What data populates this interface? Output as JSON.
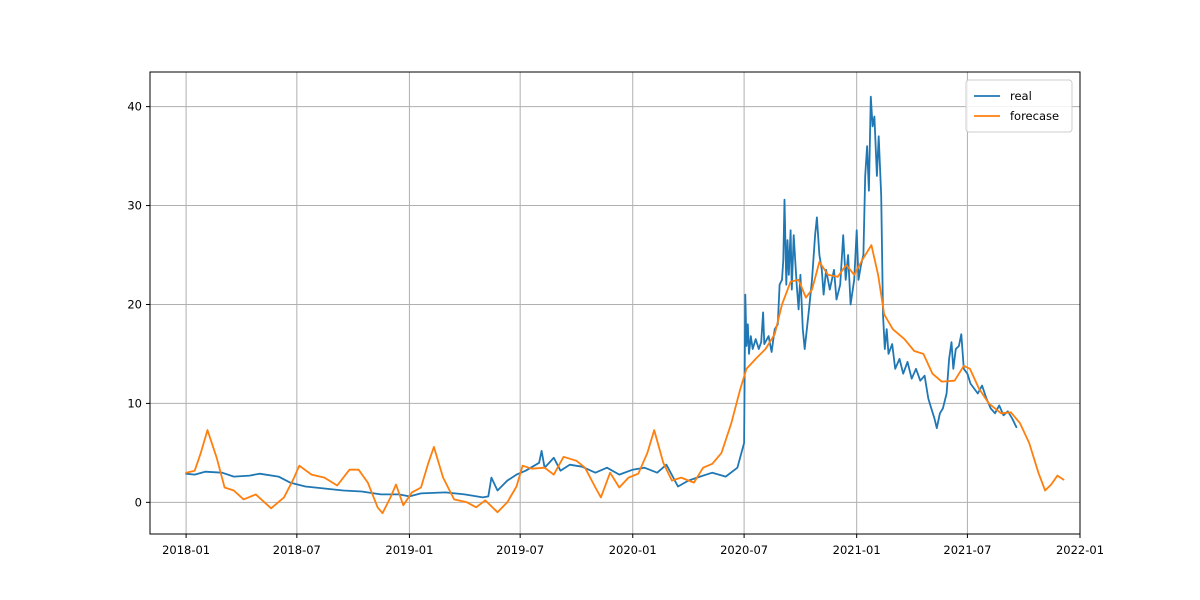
{
  "chart_data": {
    "type": "line",
    "title": "",
    "xlabel": "",
    "ylabel": "",
    "x_range": [
      "2017-11-03",
      "2022-01-01"
    ],
    "ylim": [
      -3.2,
      43.5
    ],
    "grid": true,
    "legend_position": "top-right",
    "x_ticks": [
      {
        "date": "2018-01-01",
        "label": "2018-01"
      },
      {
        "date": "2018-07-01",
        "label": "2018-07"
      },
      {
        "date": "2019-01-01",
        "label": "2019-01"
      },
      {
        "date": "2019-07-01",
        "label": "2019-07"
      },
      {
        "date": "2020-01-01",
        "label": "2020-01"
      },
      {
        "date": "2020-07-01",
        "label": "2020-07"
      },
      {
        "date": "2021-01-01",
        "label": "2021-01"
      },
      {
        "date": "2021-07-01",
        "label": "2021-07"
      },
      {
        "date": "2022-01-01",
        "label": "2022-01"
      }
    ],
    "y_ticks": [
      {
        "value": 0,
        "label": "0"
      },
      {
        "value": 10,
        "label": "10"
      },
      {
        "value": 20,
        "label": "20"
      },
      {
        "value": 30,
        "label": "30"
      },
      {
        "value": 40,
        "label": "40"
      }
    ],
    "series": [
      {
        "name": "real",
        "color": "#1f77b4",
        "points": [
          [
            "2018-01-01",
            2.9
          ],
          [
            "2018-01-15",
            2.8
          ],
          [
            "2018-02-01",
            3.1
          ],
          [
            "2018-03-01",
            3.0
          ],
          [
            "2018-03-20",
            2.6
          ],
          [
            "2018-04-15",
            2.7
          ],
          [
            "2018-05-01",
            2.9
          ],
          [
            "2018-06-01",
            2.6
          ],
          [
            "2018-06-20",
            2.0
          ],
          [
            "2018-07-15",
            1.6
          ],
          [
            "2018-08-15",
            1.4
          ],
          [
            "2018-09-15",
            1.2
          ],
          [
            "2018-10-15",
            1.1
          ],
          [
            "2018-11-15",
            0.8
          ],
          [
            "2018-12-15",
            0.8
          ],
          [
            "2019-01-01",
            0.6
          ],
          [
            "2019-01-20",
            0.9
          ],
          [
            "2019-03-01",
            1.0
          ],
          [
            "2019-04-01",
            0.8
          ],
          [
            "2019-05-01",
            0.5
          ],
          [
            "2019-05-10",
            0.6
          ],
          [
            "2019-05-15",
            2.5
          ],
          [
            "2019-05-25",
            1.2
          ],
          [
            "2019-06-10",
            2.2
          ],
          [
            "2019-06-25",
            2.8
          ],
          [
            "2019-07-10",
            3.2
          ],
          [
            "2019-08-01",
            4.0
          ],
          [
            "2019-08-05",
            5.2
          ],
          [
            "2019-08-10",
            3.5
          ],
          [
            "2019-08-25",
            4.5
          ],
          [
            "2019-09-05",
            3.2
          ],
          [
            "2019-09-20",
            3.8
          ],
          [
            "2019-10-10",
            3.6
          ],
          [
            "2019-11-01",
            3.0
          ],
          [
            "2019-11-20",
            3.5
          ],
          [
            "2019-12-10",
            2.8
          ],
          [
            "2020-01-01",
            3.3
          ],
          [
            "2020-01-20",
            3.5
          ],
          [
            "2020-02-10",
            3.0
          ],
          [
            "2020-02-25",
            3.8
          ],
          [
            "2020-03-15",
            1.6
          ],
          [
            "2020-04-01",
            2.2
          ],
          [
            "2020-04-20",
            2.6
          ],
          [
            "2020-05-10",
            3.0
          ],
          [
            "2020-06-01",
            2.6
          ],
          [
            "2020-06-20",
            3.5
          ],
          [
            "2020-07-01",
            6.0
          ],
          [
            "2020-07-03",
            21.0
          ],
          [
            "2020-07-05",
            15.8
          ],
          [
            "2020-07-07",
            18.0
          ],
          [
            "2020-07-09",
            15.0
          ],
          [
            "2020-07-12",
            16.8
          ],
          [
            "2020-07-15",
            15.5
          ],
          [
            "2020-07-20",
            16.5
          ],
          [
            "2020-07-25",
            15.5
          ],
          [
            "2020-07-29",
            16.2
          ],
          [
            "2020-08-01",
            19.2
          ],
          [
            "2020-08-03",
            16.0
          ],
          [
            "2020-08-10",
            16.8
          ],
          [
            "2020-08-15",
            15.2
          ],
          [
            "2020-08-20",
            17.5
          ],
          [
            "2020-08-25",
            18.0
          ],
          [
            "2020-08-28",
            22.0
          ],
          [
            "2020-09-01",
            22.5
          ],
          [
            "2020-09-03",
            24.5
          ],
          [
            "2020-09-05",
            30.6
          ],
          [
            "2020-09-08",
            22.0
          ],
          [
            "2020-09-10",
            26.5
          ],
          [
            "2020-09-12",
            23.0
          ],
          [
            "2020-09-15",
            27.5
          ],
          [
            "2020-09-17",
            21.5
          ],
          [
            "2020-09-20",
            27.0
          ],
          [
            "2020-09-25",
            22.0
          ],
          [
            "2020-09-28",
            19.5
          ],
          [
            "2020-10-01",
            23.0
          ],
          [
            "2020-10-05",
            17.5
          ],
          [
            "2020-10-08",
            15.5
          ],
          [
            "2020-10-15",
            19.5
          ],
          [
            "2020-10-20",
            22.5
          ],
          [
            "2020-10-25",
            27.0
          ],
          [
            "2020-10-28",
            28.8
          ],
          [
            "2020-11-01",
            25.0
          ],
          [
            "2020-11-05",
            23.5
          ],
          [
            "2020-11-08",
            21.0
          ],
          [
            "2020-11-12",
            23.5
          ],
          [
            "2020-11-18",
            21.5
          ],
          [
            "2020-11-25",
            23.5
          ],
          [
            "2020-11-29",
            20.5
          ],
          [
            "2020-12-05",
            22.0
          ],
          [
            "2020-12-10",
            27.0
          ],
          [
            "2020-12-14",
            22.5
          ],
          [
            "2020-12-18",
            25.0
          ],
          [
            "2020-12-22",
            20.0
          ],
          [
            "2020-12-28",
            22.5
          ],
          [
            "2021-01-01",
            27.5
          ],
          [
            "2021-01-04",
            22.5
          ],
          [
            "2021-01-08",
            24.0
          ],
          [
            "2021-01-12",
            25.0
          ],
          [
            "2021-01-15",
            33.0
          ],
          [
            "2021-01-18",
            36.0
          ],
          [
            "2021-01-21",
            31.5
          ],
          [
            "2021-01-24",
            41.0
          ],
          [
            "2021-01-27",
            38.0
          ],
          [
            "2021-01-30",
            39.0
          ],
          [
            "2021-02-03",
            33.0
          ],
          [
            "2021-02-06",
            37.0
          ],
          [
            "2021-02-10",
            31.0
          ],
          [
            "2021-02-13",
            19.0
          ],
          [
            "2021-02-16",
            15.5
          ],
          [
            "2021-02-19",
            17.5
          ],
          [
            "2021-02-22",
            15.0
          ],
          [
            "2021-02-28",
            16.0
          ],
          [
            "2021-03-05",
            13.5
          ],
          [
            "2021-03-12",
            14.5
          ],
          [
            "2021-03-18",
            13.0
          ],
          [
            "2021-03-25",
            14.2
          ],
          [
            "2021-04-01",
            12.5
          ],
          [
            "2021-04-08",
            13.5
          ],
          [
            "2021-04-15",
            12.3
          ],
          [
            "2021-04-22",
            12.8
          ],
          [
            "2021-04-28",
            10.5
          ],
          [
            "2021-05-03",
            9.5
          ],
          [
            "2021-05-08",
            8.5
          ],
          [
            "2021-05-12",
            7.5
          ],
          [
            "2021-05-17",
            9.0
          ],
          [
            "2021-05-22",
            9.5
          ],
          [
            "2021-05-28",
            11.0
          ],
          [
            "2021-06-01",
            14.5
          ],
          [
            "2021-06-05",
            16.2
          ],
          [
            "2021-06-08",
            13.5
          ],
          [
            "2021-06-12",
            15.5
          ],
          [
            "2021-06-17",
            15.8
          ],
          [
            "2021-06-21",
            17.0
          ],
          [
            "2021-06-25",
            13.5
          ],
          [
            "2021-07-01",
            13.0
          ],
          [
            "2021-07-06",
            12.0
          ],
          [
            "2021-07-12",
            11.5
          ],
          [
            "2021-07-18",
            11.0
          ],
          [
            "2021-07-25",
            11.8
          ],
          [
            "2021-08-01",
            10.5
          ],
          [
            "2021-08-08",
            9.5
          ],
          [
            "2021-08-15",
            9.0
          ],
          [
            "2021-08-22",
            9.8
          ],
          [
            "2021-08-29",
            8.8
          ],
          [
            "2021-09-05",
            9.2
          ],
          [
            "2021-09-12",
            8.5
          ],
          [
            "2021-09-19",
            7.6
          ]
        ]
      },
      {
        "name": "forecase",
        "color": "#ff7f0e",
        "points": [
          [
            "2018-01-01",
            3.0
          ],
          [
            "2018-01-15",
            3.2
          ],
          [
            "2018-01-25",
            5.0
          ],
          [
            "2018-02-05",
            7.3
          ],
          [
            "2018-02-20",
            4.5
          ],
          [
            "2018-03-05",
            1.5
          ],
          [
            "2018-03-20",
            1.2
          ],
          [
            "2018-04-05",
            0.3
          ],
          [
            "2018-04-25",
            0.8
          ],
          [
            "2018-05-20",
            -0.6
          ],
          [
            "2018-06-10",
            0.5
          ],
          [
            "2018-06-25",
            2.3
          ],
          [
            "2018-07-05",
            3.7
          ],
          [
            "2018-07-25",
            2.8
          ],
          [
            "2018-08-15",
            2.5
          ],
          [
            "2018-09-05",
            1.7
          ],
          [
            "2018-09-25",
            3.3
          ],
          [
            "2018-10-10",
            3.3
          ],
          [
            "2018-10-25",
            2.0
          ],
          [
            "2018-11-10",
            -0.5
          ],
          [
            "2018-11-18",
            -1.1
          ],
          [
            "2018-12-01",
            0.5
          ],
          [
            "2018-12-10",
            1.8
          ],
          [
            "2018-12-22",
            -0.3
          ],
          [
            "2019-01-05",
            1.0
          ],
          [
            "2019-01-20",
            1.5
          ],
          [
            "2019-02-01",
            4.0
          ],
          [
            "2019-02-10",
            5.6
          ],
          [
            "2019-02-25",
            2.5
          ],
          [
            "2019-03-15",
            0.3
          ],
          [
            "2019-04-05",
            0.0
          ],
          [
            "2019-04-20",
            -0.5
          ],
          [
            "2019-05-05",
            0.2
          ],
          [
            "2019-05-25",
            -1.0
          ],
          [
            "2019-06-10",
            0.0
          ],
          [
            "2019-06-25",
            1.6
          ],
          [
            "2019-07-05",
            3.7
          ],
          [
            "2019-07-20",
            3.4
          ],
          [
            "2019-08-10",
            3.5
          ],
          [
            "2019-08-25",
            2.8
          ],
          [
            "2019-09-10",
            4.6
          ],
          [
            "2019-10-01",
            4.2
          ],
          [
            "2019-10-15",
            3.5
          ],
          [
            "2019-11-01",
            1.5
          ],
          [
            "2019-11-10",
            0.5
          ],
          [
            "2019-11-25",
            3.0
          ],
          [
            "2019-12-10",
            1.5
          ],
          [
            "2019-12-25",
            2.5
          ],
          [
            "2020-01-10",
            2.9
          ],
          [
            "2020-01-25",
            5.0
          ],
          [
            "2020-02-05",
            7.3
          ],
          [
            "2020-02-20",
            4.0
          ],
          [
            "2020-03-05",
            2.2
          ],
          [
            "2020-03-20",
            2.5
          ],
          [
            "2020-04-10",
            2.0
          ],
          [
            "2020-04-25",
            3.5
          ],
          [
            "2020-05-10",
            3.9
          ],
          [
            "2020-05-25",
            5.0
          ],
          [
            "2020-06-10",
            8.0
          ],
          [
            "2020-06-25",
            11.5
          ],
          [
            "2020-07-05",
            13.5
          ],
          [
            "2020-07-20",
            14.5
          ],
          [
            "2020-08-05",
            15.5
          ],
          [
            "2020-08-20",
            17.0
          ],
          [
            "2020-09-01",
            20.0
          ],
          [
            "2020-09-15",
            22.3
          ],
          [
            "2020-09-28",
            22.5
          ],
          [
            "2020-10-10",
            20.7
          ],
          [
            "2020-10-20",
            21.5
          ],
          [
            "2020-11-01",
            24.3
          ],
          [
            "2020-11-15",
            23.0
          ],
          [
            "2020-12-01",
            22.8
          ],
          [
            "2020-12-15",
            24.0
          ],
          [
            "2020-12-28",
            23.0
          ],
          [
            "2021-01-10",
            24.5
          ],
          [
            "2021-01-25",
            26.0
          ],
          [
            "2021-02-05",
            23.0
          ],
          [
            "2021-02-15",
            19.0
          ],
          [
            "2021-03-01",
            17.5
          ],
          [
            "2021-03-20",
            16.5
          ],
          [
            "2021-04-05",
            15.3
          ],
          [
            "2021-04-20",
            15.0
          ],
          [
            "2021-05-05",
            13.0
          ],
          [
            "2021-05-20",
            12.2
          ],
          [
            "2021-06-10",
            12.3
          ],
          [
            "2021-06-25",
            13.8
          ],
          [
            "2021-07-05",
            13.5
          ],
          [
            "2021-07-20",
            11.5
          ],
          [
            "2021-08-05",
            10.0
          ],
          [
            "2021-08-25",
            9.0
          ],
          [
            "2021-09-10",
            9.1
          ],
          [
            "2021-09-25",
            8.0
          ],
          [
            "2021-10-10",
            6.0
          ],
          [
            "2021-10-25",
            3.0
          ],
          [
            "2021-11-05",
            1.2
          ],
          [
            "2021-11-15",
            1.8
          ],
          [
            "2021-11-25",
            2.7
          ],
          [
            "2021-12-05",
            2.3
          ]
        ]
      }
    ]
  }
}
